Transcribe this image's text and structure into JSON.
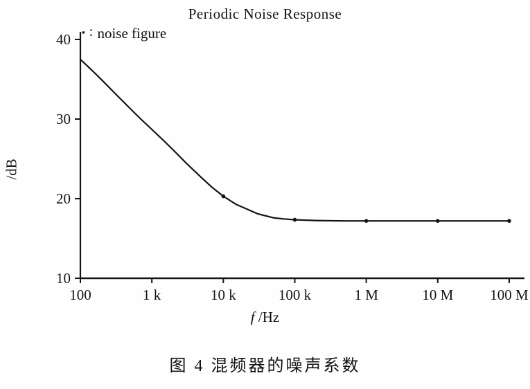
{
  "page": {
    "background": "#fefefe",
    "ink_color": "#141414"
  },
  "legend": {
    "marker": "▪",
    "separator": ":",
    "label": "noise figure"
  },
  "chart_data": {
    "type": "line",
    "title": "Periodic Noise Response",
    "xlabel": "f /Hz",
    "xlabel_var": "f",
    "xlabel_unit": " /Hz",
    "ylabel": "/dB",
    "x_scale": "log",
    "xlim": [
      100,
      100000000
    ],
    "ylim": [
      10,
      40
    ],
    "grid": false,
    "legend_position": "top-left",
    "x_ticks": [
      {
        "value": 100,
        "label": "100"
      },
      {
        "value": 1000,
        "label": "1 k"
      },
      {
        "value": 10000,
        "label": "10 k"
      },
      {
        "value": 100000,
        "label": "100 k"
      },
      {
        "value": 1000000,
        "label": "1 M"
      },
      {
        "value": 10000000,
        "label": "10 M"
      },
      {
        "value": 100000000,
        "label": "100 M"
      }
    ],
    "y_ticks": [
      {
        "value": 10,
        "label": "10"
      },
      {
        "value": 20,
        "label": "20"
      },
      {
        "value": 30,
        "label": "30"
      },
      {
        "value": 40,
        "label": "40"
      }
    ],
    "series": [
      {
        "name": "noise figure",
        "x": [
          100,
          150,
          200,
          300,
          500,
          700,
          1000,
          1500,
          2000,
          3000,
          5000,
          7000,
          10000,
          15000,
          20000,
          30000,
          50000,
          70000,
          100000,
          200000,
          500000,
          1000000,
          3000000,
          10000000,
          30000000,
          100000000
        ],
        "y": [
          37.5,
          36.0,
          34.9,
          33.3,
          31.3,
          30.0,
          28.7,
          27.2,
          26.1,
          24.5,
          22.6,
          21.4,
          20.3,
          19.3,
          18.8,
          18.1,
          17.6,
          17.45,
          17.35,
          17.25,
          17.2,
          17.2,
          17.2,
          17.2,
          17.2,
          17.2
        ],
        "marker_x": [
          10000,
          100000,
          1000000,
          10000000,
          100000000
        ],
        "color": "#141414"
      }
    ]
  },
  "caption": {
    "text": "图 4  混频器的噪声系数"
  }
}
